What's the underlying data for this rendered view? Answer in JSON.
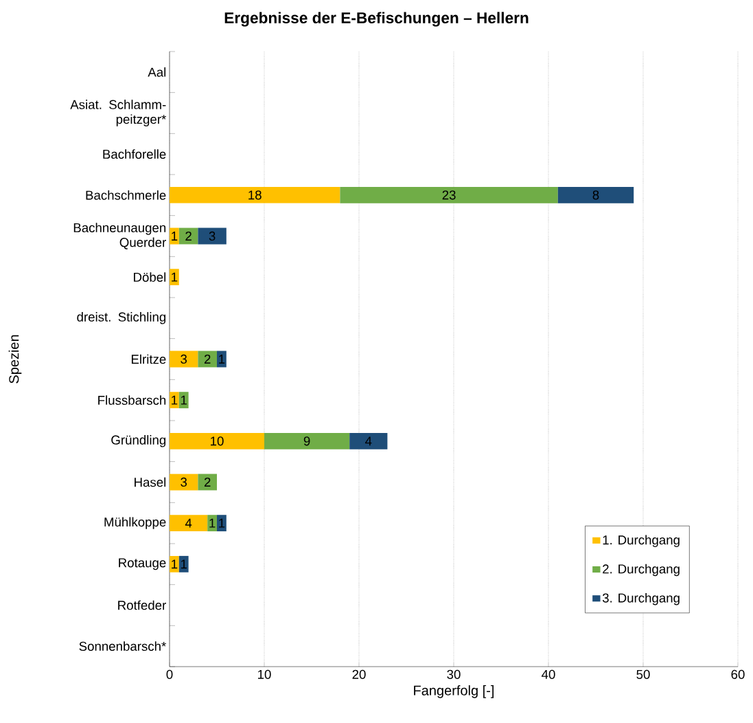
{
  "chart_data": {
    "type": "bar",
    "orientation": "horizontal",
    "stacked": true,
    "title": "Ergebnisse der E-Befischungen – Hellern",
    "xlabel": "Fangerfolg [-]",
    "ylabel": "Spezien",
    "categories": [
      "Aal",
      "Asiat. Schlamm-peitzger*",
      "Bachforelle",
      "Bachschmerle",
      "Bachneunaugen Querder",
      "Döbel",
      "dreist. Stichling",
      "Elritze",
      "Flussbarsch",
      "Gründling",
      "Hasel",
      "Mühlkoppe",
      "Rotauge",
      "Rotfeder",
      "Sonnenbarsch*"
    ],
    "series": [
      {
        "name": "1. Durchgang",
        "color": "#ffc000",
        "values": [
          null,
          null,
          null,
          18,
          1,
          1,
          null,
          3,
          1,
          10,
          3,
          4,
          1,
          null,
          null
        ]
      },
      {
        "name": "2. Durchgang",
        "color": "#70ad47",
        "values": [
          null,
          null,
          null,
          23,
          2,
          null,
          null,
          2,
          1,
          9,
          2,
          1,
          null,
          null,
          null
        ]
      },
      {
        "name": "3. Durchgang",
        "color": "#1f4e79",
        "values": [
          null,
          null,
          null,
          8,
          3,
          null,
          null,
          1,
          null,
          4,
          null,
          1,
          1,
          null,
          null
        ]
      }
    ],
    "xlim": [
      0,
      60
    ],
    "xticks": [
      0,
      10,
      20,
      30,
      40,
      50,
      60
    ],
    "grid": "x",
    "legend": "bottom right",
    "data_labels": true
  }
}
